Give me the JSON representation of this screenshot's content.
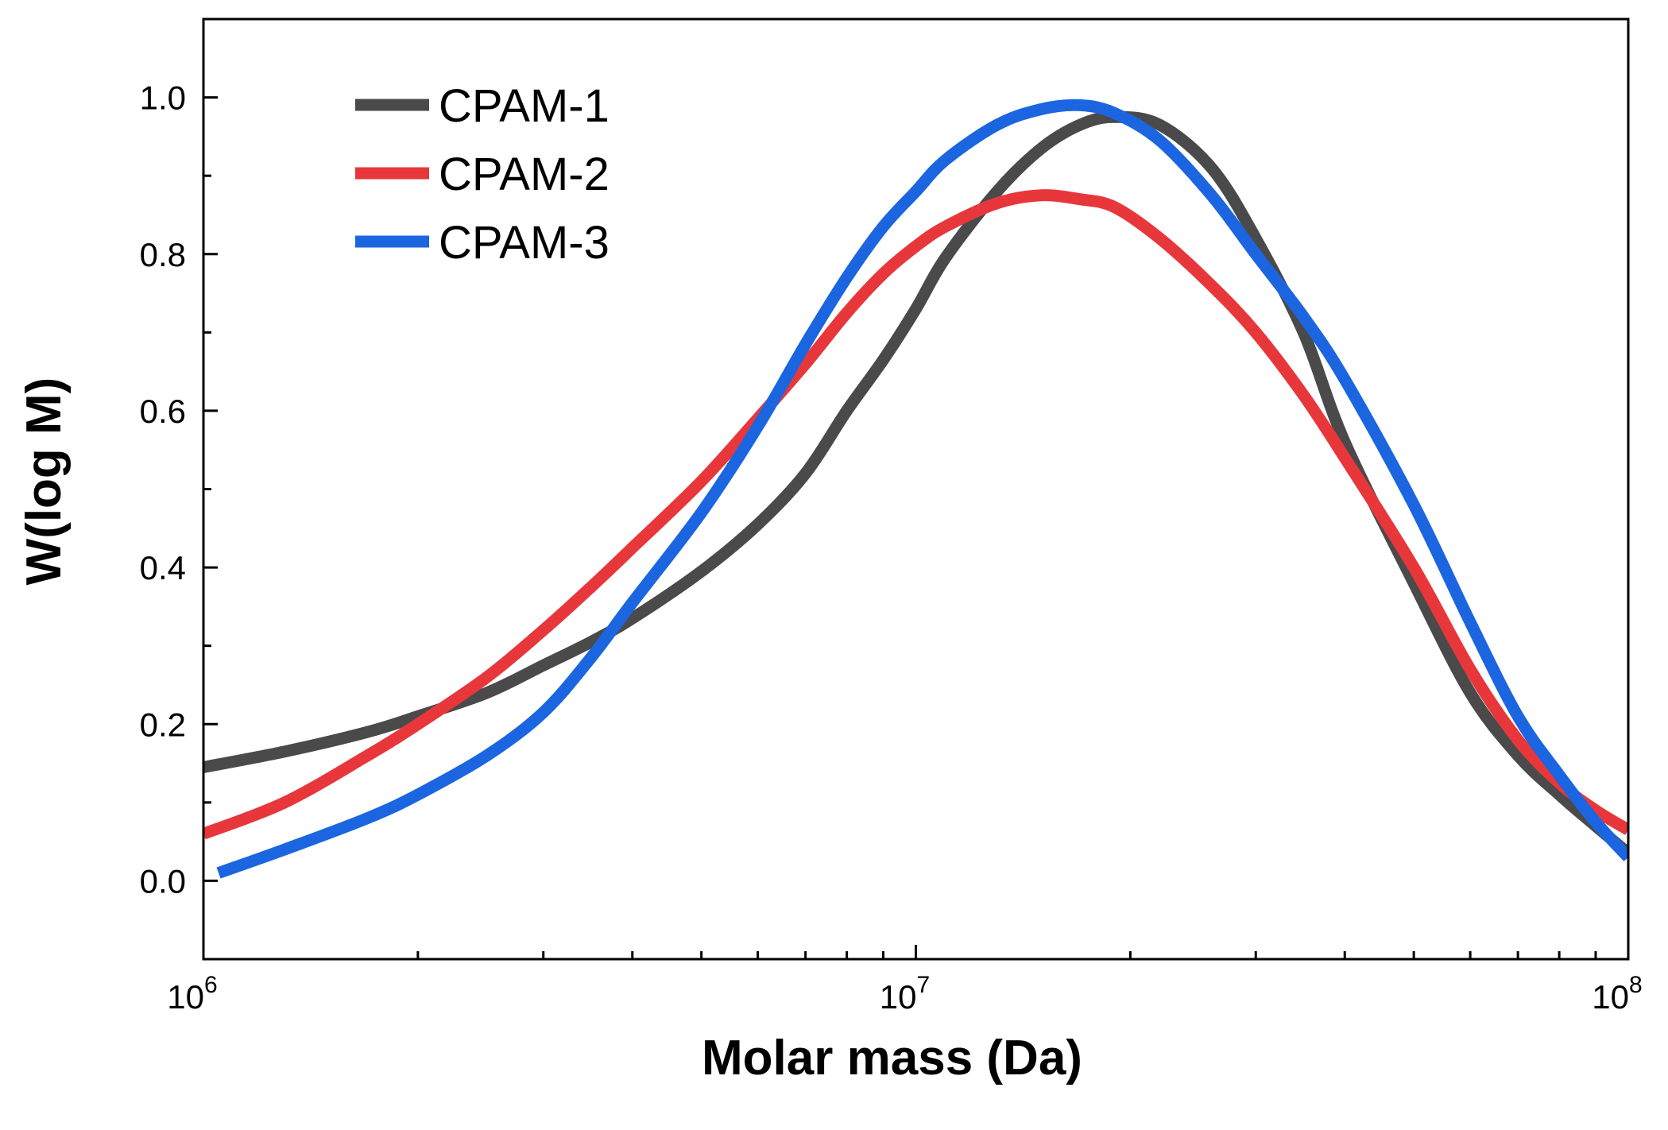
{
  "chart_data": {
    "type": "line",
    "xscale": "log",
    "xlabel": "Molar mass (Da)",
    "ylabel": "W(log M)",
    "xlim": [
      1000000,
      100000000
    ],
    "ylim": [
      -0.1,
      1.1
    ],
    "xticks": [
      {
        "value": 1000000,
        "base": "10",
        "exp": "6"
      },
      {
        "value": 10000000,
        "base": "10",
        "exp": "7"
      },
      {
        "value": 100000000,
        "base": "10",
        "exp": "8"
      }
    ],
    "yticks": [
      {
        "value": 0.0,
        "label": "0.0"
      },
      {
        "value": 0.2,
        "label": "0.2"
      },
      {
        "value": 0.4,
        "label": "0.4"
      },
      {
        "value": 0.6,
        "label": "0.6"
      },
      {
        "value": 0.8,
        "label": "0.8"
      },
      {
        "value": 1.0,
        "label": "1.0"
      }
    ],
    "legend_position": "top-left",
    "series": [
      {
        "name": "CPAM-1",
        "color": "#4a4a4a",
        "points": [
          [
            1000000,
            0.145
          ],
          [
            1300000,
            0.165
          ],
          [
            1700000,
            0.19
          ],
          [
            2000000,
            0.21
          ],
          [
            2500000,
            0.24
          ],
          [
            3000000,
            0.275
          ],
          [
            3500000,
            0.305
          ],
          [
            4000000,
            0.335
          ],
          [
            5000000,
            0.395
          ],
          [
            6000000,
            0.455
          ],
          [
            7000000,
            0.52
          ],
          [
            8000000,
            0.6
          ],
          [
            9000000,
            0.665
          ],
          [
            10000000,
            0.73
          ],
          [
            11000000,
            0.795
          ],
          [
            13000000,
            0.88
          ],
          [
            15000000,
            0.935
          ],
          [
            17000000,
            0.965
          ],
          [
            19000000,
            0.975
          ],
          [
            22000000,
            0.965
          ],
          [
            26000000,
            0.91
          ],
          [
            30000000,
            0.82
          ],
          [
            35000000,
            0.7
          ],
          [
            40000000,
            0.56
          ],
          [
            50000000,
            0.38
          ],
          [
            60000000,
            0.24
          ],
          [
            70000000,
            0.16
          ],
          [
            80000000,
            0.11
          ],
          [
            90000000,
            0.07
          ],
          [
            100000000,
            0.035
          ]
        ]
      },
      {
        "name": "CPAM-2",
        "color": "#e8373b",
        "points": [
          [
            1000000,
            0.06
          ],
          [
            1300000,
            0.1
          ],
          [
            1700000,
            0.16
          ],
          [
            2000000,
            0.2
          ],
          [
            2500000,
            0.26
          ],
          [
            3000000,
            0.32
          ],
          [
            3500000,
            0.375
          ],
          [
            4000000,
            0.425
          ],
          [
            5000000,
            0.51
          ],
          [
            6000000,
            0.59
          ],
          [
            7000000,
            0.66
          ],
          [
            8000000,
            0.725
          ],
          [
            9000000,
            0.775
          ],
          [
            10000000,
            0.81
          ],
          [
            11000000,
            0.835
          ],
          [
            13000000,
            0.865
          ],
          [
            15000000,
            0.875
          ],
          [
            17000000,
            0.87
          ],
          [
            19000000,
            0.86
          ],
          [
            22000000,
            0.82
          ],
          [
            26000000,
            0.76
          ],
          [
            30000000,
            0.7
          ],
          [
            35000000,
            0.62
          ],
          [
            40000000,
            0.54
          ],
          [
            50000000,
            0.4
          ],
          [
            60000000,
            0.27
          ],
          [
            70000000,
            0.18
          ],
          [
            80000000,
            0.125
          ],
          [
            90000000,
            0.09
          ],
          [
            100000000,
            0.065
          ]
        ]
      },
      {
        "name": "CPAM-3",
        "color": "#1b66e0",
        "points": [
          [
            1050000,
            0.01
          ],
          [
            1300000,
            0.04
          ],
          [
            1700000,
            0.08
          ],
          [
            2000000,
            0.11
          ],
          [
            2500000,
            0.16
          ],
          [
            3000000,
            0.215
          ],
          [
            3500000,
            0.285
          ],
          [
            4000000,
            0.355
          ],
          [
            5000000,
            0.47
          ],
          [
            6000000,
            0.58
          ],
          [
            7000000,
            0.685
          ],
          [
            8000000,
            0.77
          ],
          [
            9000000,
            0.835
          ],
          [
            10000000,
            0.88
          ],
          [
            11000000,
            0.92
          ],
          [
            13000000,
            0.965
          ],
          [
            15000000,
            0.985
          ],
          [
            17000000,
            0.99
          ],
          [
            19000000,
            0.98
          ],
          [
            22000000,
            0.945
          ],
          [
            26000000,
            0.875
          ],
          [
            30000000,
            0.8
          ],
          [
            35000000,
            0.72
          ],
          [
            40000000,
            0.64
          ],
          [
            50000000,
            0.48
          ],
          [
            60000000,
            0.33
          ],
          [
            70000000,
            0.21
          ],
          [
            80000000,
            0.135
          ],
          [
            90000000,
            0.075
          ],
          [
            100000000,
            0.03
          ]
        ]
      }
    ]
  }
}
